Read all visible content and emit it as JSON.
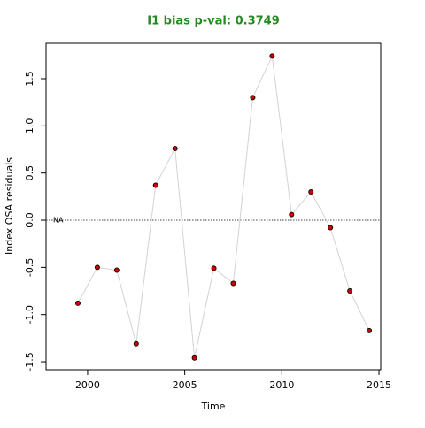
{
  "chart_data": {
    "type": "line",
    "title": "I1 bias p-val: 0.3749",
    "xlabel": "Time",
    "ylabel": "Index OSA residuals",
    "annotation": "NA",
    "x": [
      1999.5,
      2000.5,
      2001.5,
      2002.5,
      2003.5,
      2004.5,
      2005.5,
      2006.5,
      2007.5,
      2008.5,
      2009.5,
      2010.5,
      2011.5,
      2012.5,
      2013.5,
      2014.5
    ],
    "series": [
      {
        "name": "I1",
        "color": "#cc0000",
        "line_color": "#d3d3d3",
        "values": [
          -0.88,
          -0.5,
          -0.53,
          -1.31,
          0.37,
          0.76,
          -1.46,
          -0.51,
          -0.67,
          1.3,
          1.74,
          0.06,
          0.3,
          -0.08,
          -0.75,
          -1.17
        ]
      }
    ],
    "reference_line": 0,
    "xlim": [
      1997.86,
      2015.09
    ],
    "ylim": [
      -1.584,
      1.875
    ],
    "xticks": [
      2000,
      2005,
      2010,
      2015
    ],
    "yticks": [
      -1.5,
      -1.0,
      -0.5,
      0.0,
      0.5,
      1.0,
      1.5
    ]
  }
}
